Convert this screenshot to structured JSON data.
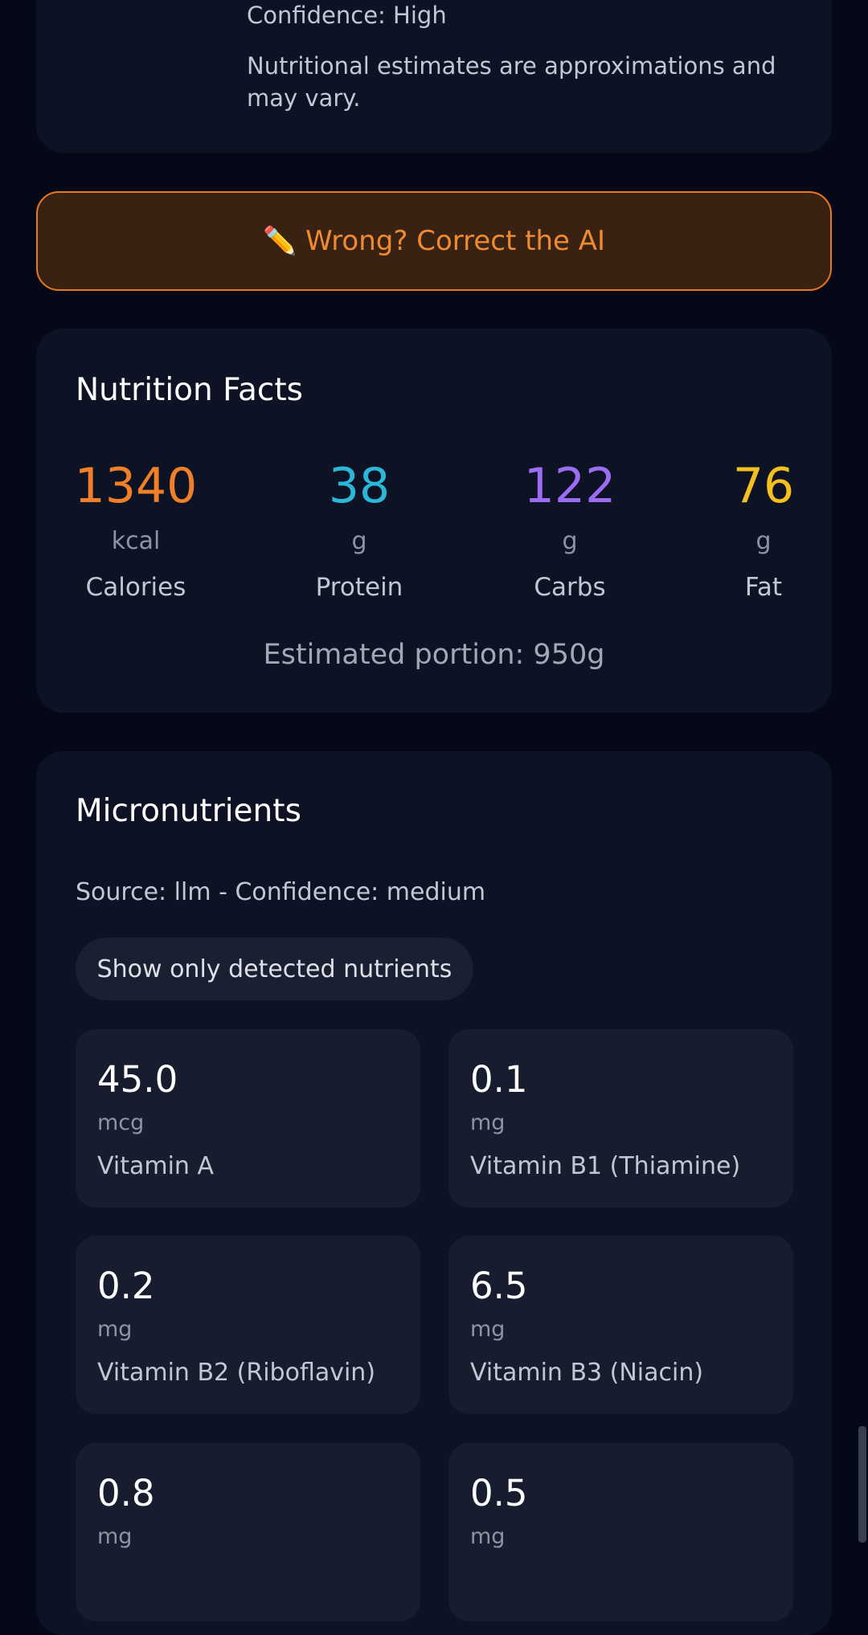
{
  "top_card": {
    "confidence": "Confidence: High",
    "disclaimer": "Nutritional estimates are approximations and may vary."
  },
  "correct_button": "✏️ Wrong? Correct the AI",
  "nutrition_facts": {
    "title": "Nutrition Facts",
    "macros": [
      {
        "value": "1340",
        "unit": "kcal",
        "label": "Calories",
        "color": "#f07f2a"
      },
      {
        "value": "38",
        "unit": "g",
        "label": "Protein",
        "color": "#2bb8d8"
      },
      {
        "value": "122",
        "unit": "g",
        "label": "Carbs",
        "color": "#9c6cf2"
      },
      {
        "value": "76",
        "unit": "g",
        "label": "Fat",
        "color": "#f2c11f"
      }
    ],
    "portion": "Estimated portion: 950g"
  },
  "micronutrients": {
    "title": "Micronutrients",
    "source": "Source: llm - Confidence: medium",
    "filter": "Show only detected nutrients",
    "items": [
      {
        "value": "45.0",
        "unit": "mcg",
        "name": "Vitamin A"
      },
      {
        "value": "0.1",
        "unit": "mg",
        "name": "Vitamin B1 (Thiamine)"
      },
      {
        "value": "0.2",
        "unit": "mg",
        "name": "Vitamin B2 (Riboflavin)"
      },
      {
        "value": "6.5",
        "unit": "mg",
        "name": "Vitamin B3 (Niacin)"
      },
      {
        "value": "0.8",
        "unit": "mg"
      },
      {
        "value": "0.5",
        "unit": "mg"
      }
    ]
  }
}
